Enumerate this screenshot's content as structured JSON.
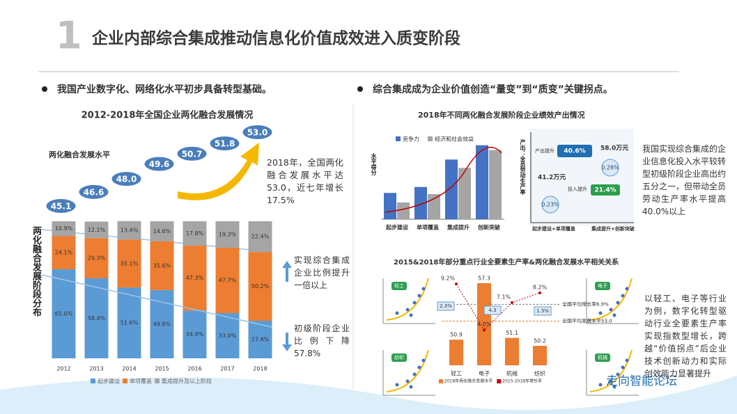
{
  "header": {
    "number": "1",
    "title": "企业内部综合集成推动信息化价值成效进入质变阶段"
  },
  "left": {
    "bullet": "我国产业数字化、网络化水平初步具备转型基础。",
    "note1": "2018年，全国两化融合发展水平达53.0，近七年增长17.5%",
    "note2": "实现综合集成企业比例提升一倍以上",
    "note3": "初级阶段企业比例下降57.8%"
  },
  "right": {
    "bullet": "综合集成成为企业价值创造“量变”到“质变”关键拐点。",
    "output": {
      "axis_label": "产出：全员劳动生产率",
      "rise_out": "产出提升",
      "rise_in": "投入提升",
      "top_pct": "40.6%",
      "top_value": "58.0万元",
      "low_value": "41.2万元",
      "pct_a": "0.28%",
      "pct_b": "21.4%",
      "pct_c": "0.23%",
      "stage_a": "起步建设+单项覆盖",
      "stage_b": "集成提升+创新突破"
    },
    "note1": "我国实现综合集成的企业信息化投入水平较转型初级阶段企业高出约五分之一，但带动全员劳动生产率水平提高40.0%以上",
    "note2": "以轻工、电子等行业为例，数字化转型驱动行业全要素生产率实现指数型增长，跨越“价值拐点”后企业技术创新动力和实际创效能力显著提升",
    "scatter_titles": [
      "轻工",
      "电子",
      "纺织",
      "机械"
    ]
  },
  "watermark": "走向智能论坛",
  "chart_data": [
    {
      "type": "bar",
      "stacked": true,
      "title": "2012-2018年全国企业两化融合发展情况",
      "ylabel": "两化融合发展阶段分布",
      "categories": [
        "2012",
        "2013",
        "2014",
        "2015",
        "2016",
        "2017",
        "2018"
      ],
      "ylim": [
        0,
        100
      ],
      "series": [
        {
          "name": "起步建设",
          "color": "#5b9bd5",
          "values": [
            65.0,
            58.4,
            51.6,
            49.8,
            34.9,
            33.0,
            27.4
          ],
          "value_labels": [
            "65.0%",
            "58.4%",
            "51.6%",
            "49.8%",
            "34.9%",
            "33.0%",
            "27.4%"
          ]
        },
        {
          "name": "单项覆盖",
          "color": "#ed7d31",
          "values": [
            24.1,
            29.3,
            35.1,
            35.6,
            47.3,
            47.7,
            50.2
          ],
          "value_labels": [
            "24.1%",
            "29.3%",
            "35.1%",
            "35.6%",
            "47.3%",
            "47.7%",
            "50.2%"
          ]
        },
        {
          "name": "集成提升及以上阶段",
          "color": "#a5a5a5",
          "values": [
            10.9,
            12.1,
            13.4,
            14.6,
            17.8,
            19.3,
            22.4
          ],
          "value_labels": [
            "10.9%",
            "12.1%",
            "13.4%",
            "14.6%",
            "17.8%",
            "19.3%",
            "22.4%"
          ]
        }
      ],
      "level": {
        "name": "两化融合发展水平",
        "color": "#4a7ebb",
        "values": [
          45.1,
          46.6,
          48.0,
          49.6,
          50.7,
          51.8,
          53.0
        ],
        "value_labels": [
          "45.1",
          "46.6",
          "48.0",
          "49.6",
          "50.7",
          "51.8",
          "53.0"
        ]
      }
    },
    {
      "type": "bar",
      "title": "2018年不同两化融合发展阶段企业绩效产出情况",
      "ylabel": "水平得分",
      "categories": [
        "起步建设",
        "单项覆盖",
        "集成提升",
        "创新突破"
      ],
      "ylim": [
        0,
        70
      ],
      "series": [
        {
          "name": "竞争力",
          "color": "#4472c4",
          "values": [
            22,
            27,
            50,
            62
          ]
        },
        {
          "name": "经济和社会效益",
          "color": "#a5a5a5",
          "values": [
            14,
            21,
            43,
            58
          ]
        }
      ]
    },
    {
      "type": "bar",
      "title": "2015&2018年部分重点行业全要素生产率&两化融合发展水平相关关系",
      "categories": [
        "轻工",
        "电子",
        "机械",
        "纺织"
      ],
      "ylim": [
        48,
        58
      ],
      "y2lim": [
        0,
        10
      ],
      "series": [
        {
          "name": "2018年两化融合发展水平",
          "color": "#ed7d31",
          "values": [
            50.9,
            57.3,
            51.1,
            50.2
          ]
        },
        {
          "name": "2015-2018年增长率",
          "color": "#c00000",
          "axis": "y2",
          "values": [
            9.2,
            4.0,
            7.1,
            8.2
          ],
          "value_labels": [
            "9.2%",
            "4.0%",
            "7.1%",
            "8.2%"
          ]
        }
      ],
      "annotations": [
        "2.3%",
        "4.3",
        "1.3%"
      ],
      "references": [
        {
          "axis": "y",
          "value": 53.0,
          "label": "全国平均发展水平53.0"
        },
        {
          "axis": "y2",
          "value": 6.9,
          "label": "全国平均增长率6.9%"
        }
      ]
    }
  ]
}
